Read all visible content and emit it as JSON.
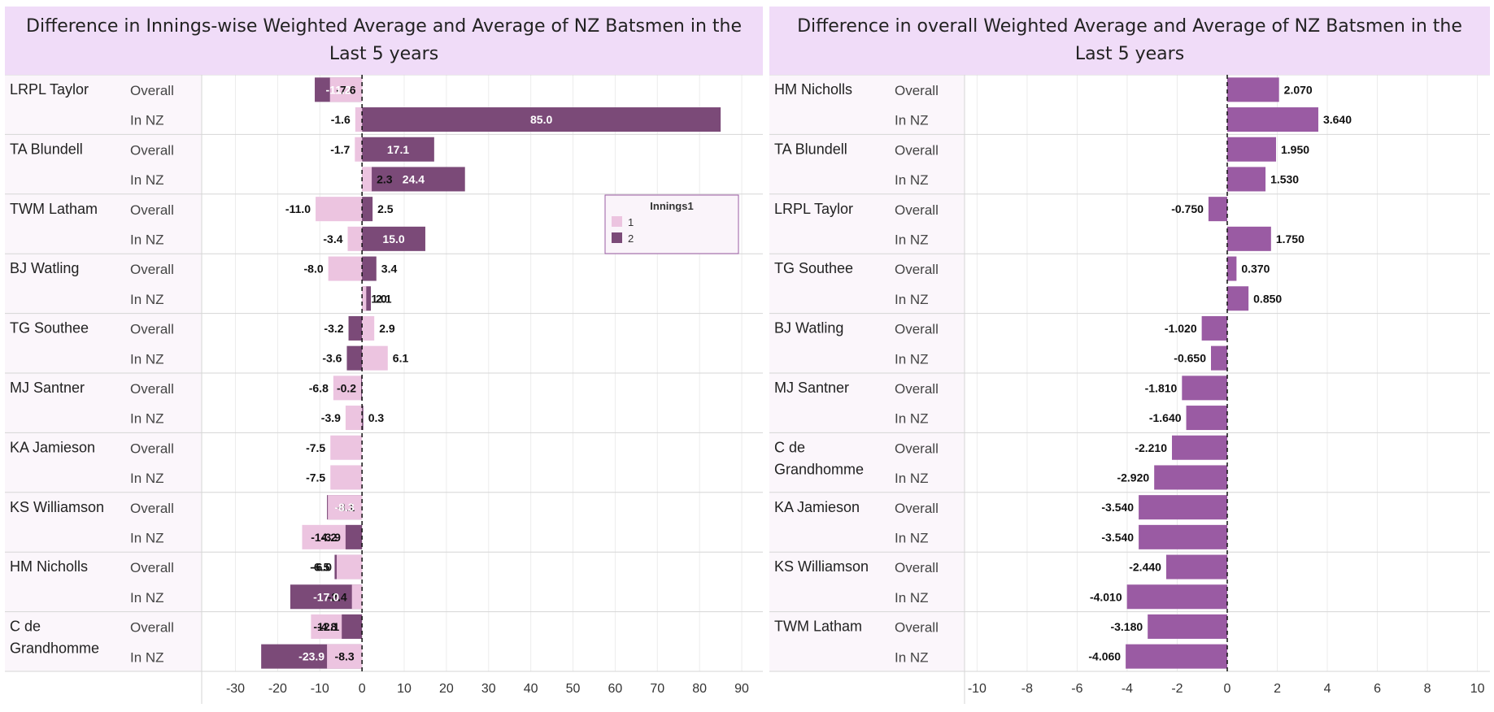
{
  "colors": {
    "innings1": "#ecc4e0",
    "innings2": "#7b4a78",
    "overall": "#9a5ba3",
    "title_bg": "#f0dcf8",
    "row_header_bg": "#fbf6fb"
  },
  "chart_data": [
    {
      "type": "bar",
      "orientation": "horizontal",
      "title": "Difference in Innings-wise Weighted Average and Average of NZ Batsmen in the Last 5 years",
      "xlim": [
        -38,
        95
      ],
      "xticks": [
        -30,
        -20,
        -10,
        0,
        10,
        20,
        30,
        40,
        50,
        60,
        70,
        80,
        90
      ],
      "legend": {
        "title": "Innings1",
        "entries": [
          "1",
          "2"
        ],
        "placement": "right"
      },
      "players": [
        {
          "name": "LRPL Taylor",
          "rows": [
            {
              "label": "Overall",
              "inn1": -7.6,
              "inn2": -11.2
            },
            {
              "label": "In NZ",
              "inn1": -1.6,
              "inn2": 85.0
            }
          ]
        },
        {
          "name": "TA Blundell",
          "rows": [
            {
              "label": "Overall",
              "inn1": -1.7,
              "inn2": 17.1
            },
            {
              "label": "In NZ",
              "inn1": 2.3,
              "inn2": 24.4
            }
          ]
        },
        {
          "name": "TWM Latham",
          "rows": [
            {
              "label": "Overall",
              "inn1": -11.0,
              "inn2": 2.5
            },
            {
              "label": "In NZ",
              "inn1": -3.4,
              "inn2": 15.0
            }
          ]
        },
        {
          "name": "BJ Watling",
          "rows": [
            {
              "label": "Overall",
              "inn1": -8.0,
              "inn2": 3.4
            },
            {
              "label": "In NZ",
              "inn1": 1.0,
              "inn2": 2.1
            }
          ]
        },
        {
          "name": "TG Southee",
          "rows": [
            {
              "label": "Overall",
              "inn1": 2.9,
              "inn2": -3.2
            },
            {
              "label": "In NZ",
              "inn1": 6.1,
              "inn2": -3.6
            }
          ]
        },
        {
          "name": "MJ Santner",
          "rows": [
            {
              "label": "Overall",
              "inn1": -6.8,
              "inn2": -0.2
            },
            {
              "label": "In NZ",
              "inn1": -3.9,
              "inn2": 0.3
            }
          ]
        },
        {
          "name": "KA Jamieson",
          "rows": [
            {
              "label": "Overall",
              "inn1": -7.5,
              "inn2": null
            },
            {
              "label": "In NZ",
              "inn1": -7.5,
              "inn2": null
            }
          ]
        },
        {
          "name": "KS Williamson",
          "rows": [
            {
              "label": "Overall",
              "inn1": -8.1,
              "inn2": -8.3
            },
            {
              "label": "In NZ",
              "inn1": -14.2,
              "inn2": -3.9
            }
          ]
        },
        {
          "name": "HM Nicholls",
          "rows": [
            {
              "label": "Overall",
              "inn1": -6.0,
              "inn2": -6.5
            },
            {
              "label": "In NZ",
              "inn1": -2.4,
              "inn2": -17.0
            }
          ]
        },
        {
          "name": "C de Grandhomme",
          "rows": [
            {
              "label": "Overall",
              "inn1": -12.1,
              "inn2": -4.8
            },
            {
              "label": "In NZ",
              "inn1": -8.3,
              "inn2": -23.9
            }
          ]
        }
      ]
    },
    {
      "type": "bar",
      "orientation": "horizontal",
      "title": "Difference in overall Weighted Average and Average of NZ Batsmen in the Last 5 years",
      "xlim": [
        -10.5,
        10.5
      ],
      "xticks": [
        -10,
        -8,
        -6,
        -4,
        -2,
        0,
        2,
        4,
        6,
        8,
        10
      ],
      "players": [
        {
          "name": "HM Nicholls",
          "rows": [
            {
              "label": "Overall",
              "value": 2.07
            },
            {
              "label": "In NZ",
              "value": 3.64
            }
          ]
        },
        {
          "name": "TA Blundell",
          "rows": [
            {
              "label": "Overall",
              "value": 1.95
            },
            {
              "label": "In NZ",
              "value": 1.53
            }
          ]
        },
        {
          "name": "LRPL Taylor",
          "rows": [
            {
              "label": "Overall",
              "value": -0.75
            },
            {
              "label": "In NZ",
              "value": 1.75
            }
          ]
        },
        {
          "name": "TG Southee",
          "rows": [
            {
              "label": "Overall",
              "value": 0.37
            },
            {
              "label": "In NZ",
              "value": 0.85
            }
          ]
        },
        {
          "name": "BJ Watling",
          "rows": [
            {
              "label": "Overall",
              "value": -1.02
            },
            {
              "label": "In NZ",
              "value": -0.65
            }
          ]
        },
        {
          "name": "MJ Santner",
          "rows": [
            {
              "label": "Overall",
              "value": -1.81
            },
            {
              "label": "In NZ",
              "value": -1.64
            }
          ]
        },
        {
          "name": "C de Grandhomme",
          "rows": [
            {
              "label": "Overall",
              "value": -2.21
            },
            {
              "label": "In NZ",
              "value": -2.92
            }
          ]
        },
        {
          "name": "KA Jamieson",
          "rows": [
            {
              "label": "Overall",
              "value": -3.54
            },
            {
              "label": "In NZ",
              "value": -3.54
            }
          ]
        },
        {
          "name": "KS Williamson",
          "rows": [
            {
              "label": "Overall",
              "value": -2.44
            },
            {
              "label": "In NZ",
              "value": -4.01
            }
          ]
        },
        {
          "name": "TWM Latham",
          "rows": [
            {
              "label": "Overall",
              "value": -3.18
            },
            {
              "label": "In NZ",
              "value": -4.06
            }
          ]
        }
      ]
    }
  ]
}
